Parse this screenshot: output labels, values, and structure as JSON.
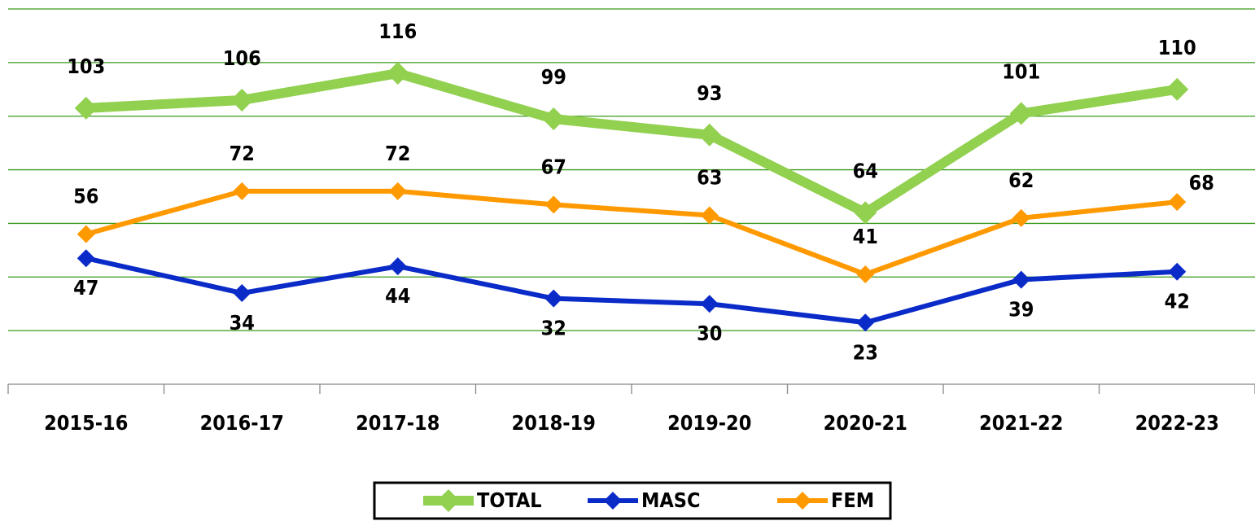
{
  "chart_data": {
    "type": "line",
    "categories": [
      "2015-16",
      "2016-17",
      "2017-18",
      "2018-19",
      "2019-20",
      "2020-21",
      "2021-22",
      "2022-23"
    ],
    "series": [
      {
        "name": "TOTAL",
        "color": "#92d050",
        "values": [
          103,
          106,
          116,
          99,
          93,
          64,
          101,
          110
        ]
      },
      {
        "name": "MASC",
        "color": "#0a2bc8",
        "values": [
          47,
          34,
          44,
          32,
          30,
          23,
          39,
          42
        ]
      },
      {
        "name": "FEM",
        "color": "#ff9900",
        "values": [
          56,
          72,
          72,
          67,
          63,
          41,
          62,
          68
        ]
      }
    ],
    "ylim": [
      0,
      140
    ],
    "yticks": [
      0,
      20,
      40,
      60,
      80,
      100,
      120,
      140
    ],
    "grid": true,
    "grid_color": "#3a9a1a",
    "legend": "bottom"
  }
}
